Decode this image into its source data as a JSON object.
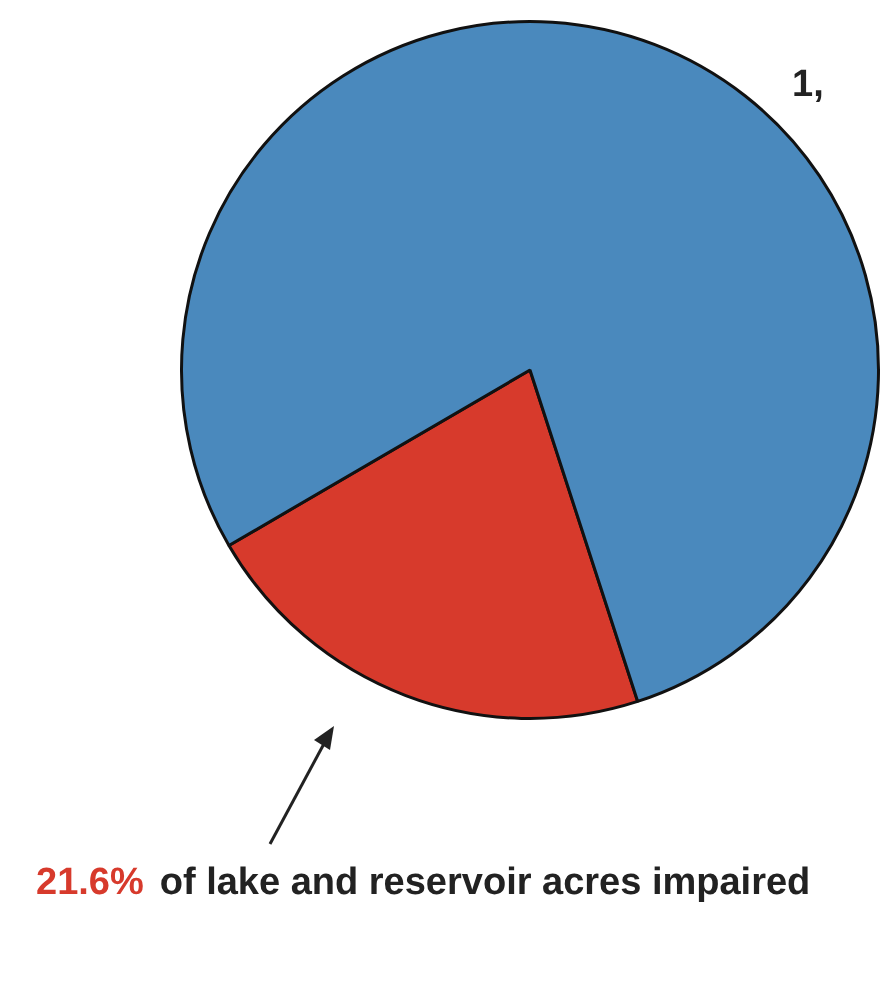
{
  "chart_data": {
    "type": "pie",
    "categories": [
      "of lake and reservoir acres impaired",
      null
    ],
    "values": [
      21.6,
      78.4
    ],
    "colors": [
      "#d73a2c",
      "#4a89bd"
    ],
    "value_labels": [
      "21.6%",
      null
    ],
    "annotations": [
      "1,"
    ]
  }
}
